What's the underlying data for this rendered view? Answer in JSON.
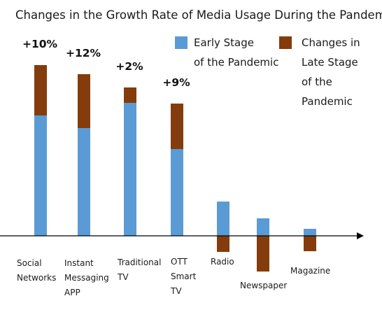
{
  "chart_data": {
    "type": "bar",
    "stacked": true,
    "title": "Changes in the Growth Rate of Media Usage During the Pandemic",
    "xlabel": "",
    "ylabel": "",
    "grid": false,
    "legend_position": "top-right",
    "colors": {
      "early": "#5b9bd5",
      "late": "#843c0c",
      "axis": "#000000"
    },
    "categories": [
      [
        "Social",
        "Networks"
      ],
      [
        "Instant",
        "Messaging",
        "APP"
      ],
      [
        "Traditional",
        "TV"
      ],
      [
        "OTT",
        "Smart",
        "TV"
      ],
      [
        "Radio"
      ],
      [
        "Newspaper"
      ],
      [
        "Magazine"
      ]
    ],
    "series": [
      {
        "name": [
          "Early Stage",
          "of the Pandemic"
        ],
        "values": [
          17.2,
          15.4,
          19.0,
          12.4,
          4.9,
          2.5,
          1.0
        ]
      },
      {
        "name": [
          "Changes in",
          "Late Stage",
          "of the",
          "Pandemic"
        ],
        "values": [
          7.2,
          7.7,
          2.2,
          6.5,
          -2.3,
          -5.1,
          -2.2
        ]
      }
    ],
    "data_labels": [
      "+10%",
      "+12%",
      "+2%",
      "+9%",
      "",
      "",
      ""
    ]
  }
}
